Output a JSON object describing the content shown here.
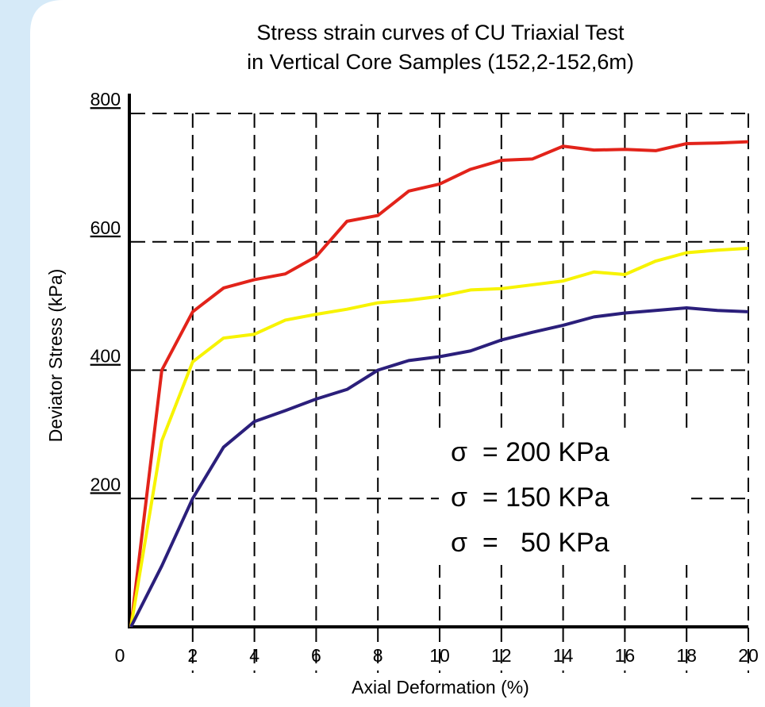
{
  "chart_data": {
    "type": "line",
    "title": "Stress strain curves of  CU Triaxial Test",
    "subtitle": "in Vertical Core Samples (152,2-152,6m)",
    "x_label": "Axial Deformation (%)",
    "y_label": "Deviator Stress (kPa)",
    "x": [
      0,
      1,
      2,
      3,
      4,
      5,
      6,
      7,
      8,
      9,
      10,
      11,
      12,
      13,
      14,
      15,
      16,
      17,
      18,
      19,
      20
    ],
    "series": [
      {
        "name": "σ  = 200 KPa",
        "color": "#e2231a",
        "values": [
          0,
          400,
          491,
          528,
          541,
          550,
          577,
          632,
          641,
          679,
          690,
          713,
          727,
          729,
          749,
          743,
          744,
          742,
          753,
          754,
          756
        ]
      },
      {
        "name": "σ  = 150 KPa",
        "color": "#f7f300",
        "values": [
          0,
          290,
          413,
          450,
          456,
          478,
          487,
          495,
          505,
          509,
          515,
          525,
          527,
          533,
          539,
          553,
          549,
          570,
          583,
          587,
          590
        ]
      },
      {
        "name": "σ  =   50 KPa",
        "color": "#2b1f7b",
        "values": [
          0,
          95,
          200,
          280,
          320,
          337,
          355,
          370,
          400,
          415,
          421,
          430,
          447,
          459,
          470,
          483,
          489,
          493,
          497,
          493,
          491
        ]
      }
    ],
    "xlim": [
      0,
      20
    ],
    "xticks": [
      0,
      2,
      4,
      6,
      8,
      10,
      12,
      14,
      16,
      18,
      20
    ],
    "ylim": [
      0,
      800
    ],
    "yticks": [
      200,
      400,
      600,
      800
    ],
    "grid": true,
    "legend": "lower right"
  }
}
